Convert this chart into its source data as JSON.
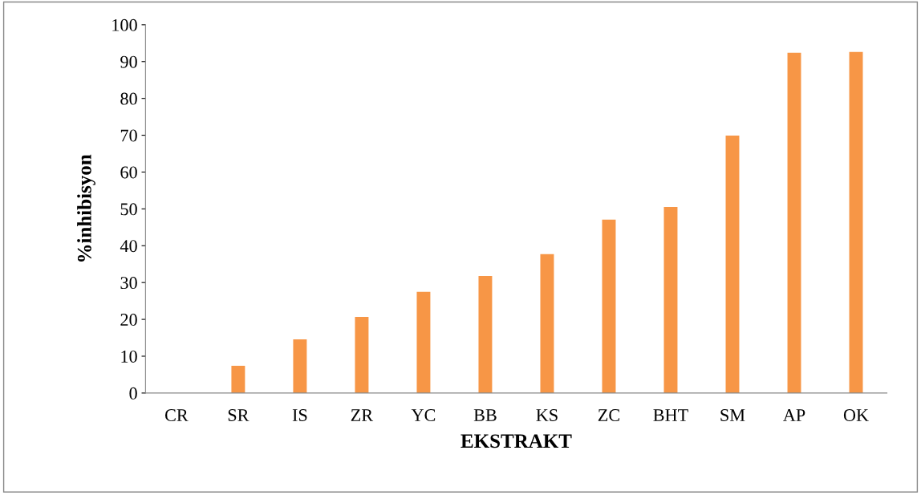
{
  "chart_data": {
    "type": "bar",
    "xlabel": "EKSTRAKT",
    "ylabel": "%inhibisyon",
    "categories": [
      "CR",
      "SR",
      "IS",
      "ZR",
      "YC",
      "BB",
      "KS",
      "ZC",
      "BHT",
      "SM",
      "AP",
      "OK"
    ],
    "values": [
      0,
      7.4,
      14.6,
      20.7,
      27.5,
      31.8,
      37.7,
      47.1,
      50.5,
      69.9,
      92.4,
      92.6
    ],
    "color": "#f79646",
    "ylim": [
      0,
      100
    ],
    "yticks": [
      0,
      10,
      20,
      30,
      40,
      50,
      60,
      70,
      80,
      90,
      100
    ],
    "grid": false,
    "legend": false
  }
}
